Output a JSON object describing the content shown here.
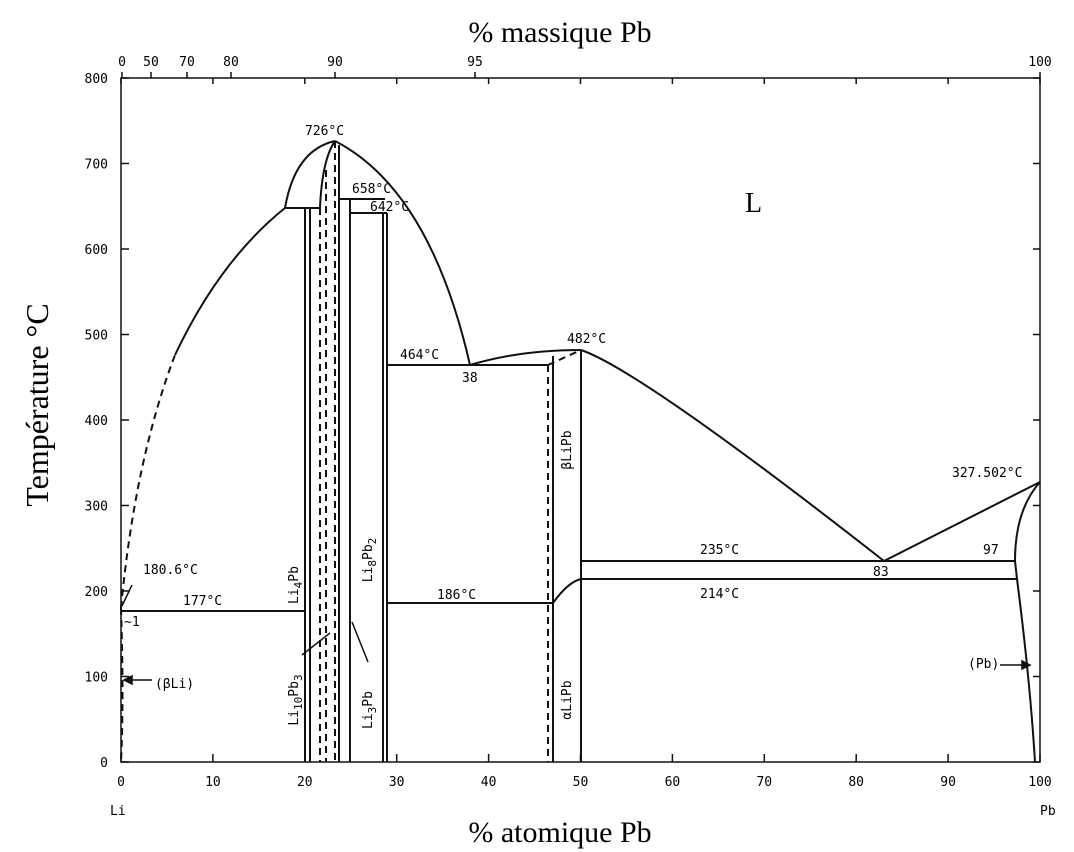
{
  "diagram": {
    "top_axis_label": "% massique Pb",
    "bottom_axis_label": "% atomique Pb",
    "left_axis_label": "Température °C",
    "left_element": "Li",
    "right_element": "Pb",
    "top_ticks": [
      "0",
      "50",
      "70",
      "80",
      "90",
      "95",
      "100"
    ],
    "bottom_ticks": [
      "0",
      "10",
      "20",
      "30",
      "40",
      "50",
      "60",
      "70",
      "80",
      "90",
      "100"
    ],
    "left_ticks": [
      "0",
      "100",
      "200",
      "300",
      "400",
      "500",
      "600",
      "700",
      "800"
    ],
    "annotations": [
      "726°C",
      "658°C",
      "642°C",
      "L",
      "464°C",
      "38",
      "482°C",
      "327.502°C",
      "235°C",
      "97",
      "83",
      "214°C",
      "186°C",
      "177°C",
      "180.6°C",
      "~1",
      "(βLi)",
      "(Pb)"
    ],
    "phases": [
      {
        "parts": [
          "Li",
          "4",
          "Pb"
        ]
      },
      {
        "parts": [
          "Li",
          "8",
          "Pb",
          "2"
        ]
      },
      {
        "parts": [
          "βLiPb"
        ]
      },
      {
        "parts": [
          "αLiPb"
        ]
      },
      {
        "parts": [
          "Li",
          "10",
          "Pb",
          "3"
        ]
      },
      {
        "parts": [
          "Li",
          "3",
          "Pb"
        ]
      }
    ]
  }
}
